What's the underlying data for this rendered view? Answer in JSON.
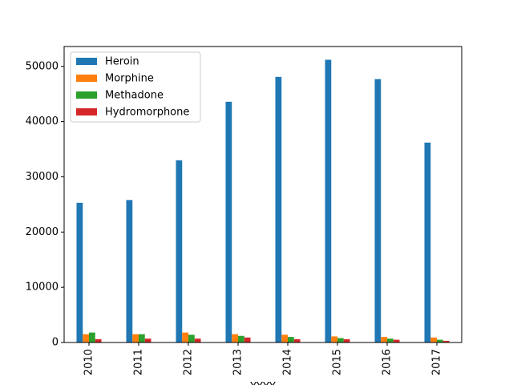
{
  "chart_data": {
    "type": "bar",
    "xlabel": "YYYY",
    "categories": [
      "2010",
      "2011",
      "2012",
      "2013",
      "2014",
      "2015",
      "2016",
      "2017"
    ],
    "series": [
      {
        "name": "Heroin",
        "color": "#1f77b4",
        "values": [
          25300,
          25800,
          33000,
          43600,
          48100,
          51200,
          47700,
          36200
        ]
      },
      {
        "name": "Morphine",
        "color": "#ff7f0e",
        "values": [
          1500,
          1500,
          1800,
          1500,
          1400,
          1100,
          1000,
          900
        ]
      },
      {
        "name": "Methadone",
        "color": "#2ca02c",
        "values": [
          1800,
          1500,
          1400,
          1200,
          1000,
          800,
          700,
          500
        ]
      },
      {
        "name": "Hydromorphone",
        "color": "#d62728",
        "values": [
          600,
          700,
          700,
          900,
          600,
          600,
          500,
          300
        ]
      }
    ],
    "ylim": [
      0,
      53600
    ],
    "yticks": [
      0,
      10000,
      20000,
      30000,
      40000,
      50000
    ],
    "legend": "upper left"
  }
}
